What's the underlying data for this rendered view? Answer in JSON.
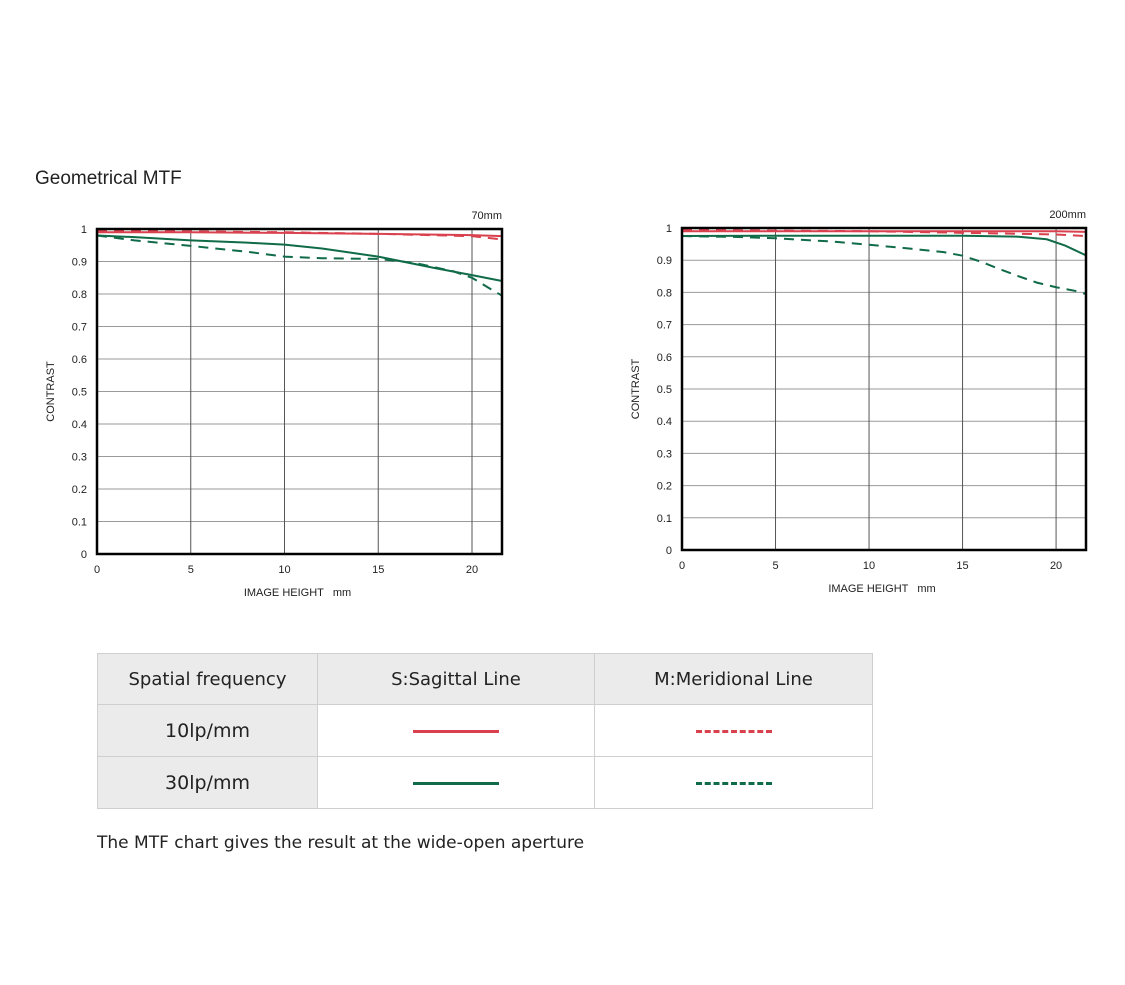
{
  "page": {
    "section_title": "Geometrical MTF",
    "note": "The MTF chart gives the result at the wide-open aperture"
  },
  "colors": {
    "sagittal_10": "#d9414e",
    "meridional_10": "#d9414e",
    "sagittal_30": "#106b48",
    "meridional_30": "#106b48",
    "grid": "#9a9a9a",
    "frame": "#000000"
  },
  "chart_data": [
    {
      "type": "line",
      "title": "70mm",
      "xlabel": "IMAGE HEIGHT   mm",
      "ylabel": "CONTRAST",
      "xlim": [
        0,
        21.6
      ],
      "ylim": [
        0,
        1
      ],
      "xticks": [
        0,
        5,
        10,
        15,
        20
      ],
      "yticks": [
        "0",
        "0.1",
        "0.2",
        "0.3",
        "0.4",
        "0.5",
        "0.6",
        "0.7",
        "0.8",
        "0.9",
        "1"
      ],
      "grid": true,
      "series": [
        {
          "name": "10lp/mm S:Sagittal Line",
          "x": [
            0,
            5,
            10,
            15,
            20,
            21.6
          ],
          "values": [
            0.99,
            0.99,
            0.988,
            0.985,
            0.981,
            0.978
          ]
        },
        {
          "name": "10lp/mm M:Meridional Line",
          "x": [
            0,
            5,
            10,
            15,
            20,
            21.6
          ],
          "values": [
            0.995,
            0.993,
            0.99,
            0.985,
            0.978,
            0.968
          ]
        },
        {
          "name": "30lp/mm S:Sagittal Line",
          "x": [
            0,
            2,
            5,
            8,
            10,
            12,
            15,
            18,
            20,
            21.6
          ],
          "values": [
            0.98,
            0.975,
            0.965,
            0.958,
            0.952,
            0.94,
            0.915,
            0.88,
            0.858,
            0.84
          ]
        },
        {
          "name": "30lp/mm M:Meridional Line",
          "x": [
            0,
            2,
            5,
            8,
            10,
            12,
            15,
            17,
            19,
            20,
            21,
            21.6
          ],
          "values": [
            0.98,
            0.965,
            0.948,
            0.93,
            0.915,
            0.91,
            0.908,
            0.895,
            0.87,
            0.85,
            0.815,
            0.795
          ]
        }
      ]
    },
    {
      "type": "line",
      "title": "200mm",
      "xlabel": "IMAGE HEIGHT   mm",
      "ylabel": "CONTRAST",
      "xlim": [
        0,
        21.6
      ],
      "ylim": [
        0,
        1
      ],
      "xticks": [
        0,
        5,
        10,
        15,
        20
      ],
      "yticks": [
        "0",
        "0.1",
        "0.2",
        "0.3",
        "0.4",
        "0.5",
        "0.6",
        "0.7",
        "0.8",
        "0.9",
        "1"
      ],
      "grid": true,
      "series": [
        {
          "name": "10lp/mm S:Sagittal Line",
          "x": [
            0,
            5,
            10,
            15,
            20,
            21.6
          ],
          "values": [
            0.99,
            0.99,
            0.99,
            0.99,
            0.99,
            0.988
          ]
        },
        {
          "name": "10lp/mm M:Meridional Line",
          "x": [
            0,
            5,
            10,
            15,
            20,
            21.6
          ],
          "values": [
            0.995,
            0.992,
            0.99,
            0.985,
            0.98,
            0.975
          ]
        },
        {
          "name": "30lp/mm S:Sagittal Line",
          "x": [
            0,
            5,
            10,
            15,
            18,
            19.5,
            20.5,
            21.6
          ],
          "values": [
            0.975,
            0.976,
            0.976,
            0.976,
            0.973,
            0.965,
            0.945,
            0.915
          ]
        },
        {
          "name": "30lp/mm M:Meridional Line",
          "x": [
            0,
            3,
            5,
            8,
            10,
            12,
            14,
            15,
            16,
            17,
            18,
            19,
            20,
            21,
            21.6
          ],
          "values": [
            0.975,
            0.972,
            0.968,
            0.958,
            0.948,
            0.937,
            0.925,
            0.914,
            0.895,
            0.872,
            0.85,
            0.83,
            0.816,
            0.805,
            0.795
          ]
        }
      ]
    }
  ],
  "legend_table": {
    "headers": [
      "Spatial frequency",
      "S:Sagittal Line",
      "M:Meridional Line"
    ],
    "rows": [
      {
        "frequency": "10lp/mm",
        "color": "#d9414e"
      },
      {
        "frequency": "30lp/mm",
        "color": "#106b48"
      }
    ]
  }
}
